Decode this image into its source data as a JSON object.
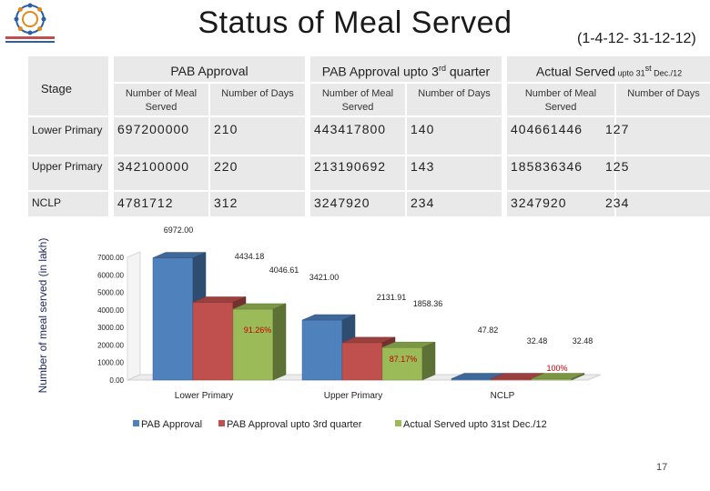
{
  "header": {
    "title": "Status of Meal Served",
    "period": "(1-4-12- 31-12-12)"
  },
  "table": {
    "stage_label": "Stage",
    "groups": [
      {
        "label": "PAB Approval"
      },
      {
        "label_main": "PAB Approval upto 3",
        "label_sup": "rd",
        "label_tail": " quarter"
      },
      {
        "label_main": "Actual Served",
        "label_small": " upto 31",
        "label_sup": "st",
        "label_small_tail": " Dec./12"
      }
    ],
    "sub_meal": "Number of Meal Served",
    "sub_days": "Number of Days",
    "rows": [
      {
        "stage": "Lower Primary",
        "cells": [
          "697200000",
          "210",
          "443417800",
          "140",
          "404661446",
          "127"
        ]
      },
      {
        "stage": "Upper Primary",
        "cells": [
          "342100000",
          "220",
          "213190692",
          "143",
          "185836346",
          "125"
        ]
      },
      {
        "stage": "NCLP",
        "cells": [
          "4781712",
          "312",
          "3247920",
          "234",
          "3247920",
          "234"
        ]
      }
    ]
  },
  "chart_data": {
    "type": "bar",
    "ylabel": "Number of meal served (in lakh)",
    "ylim": [
      0,
      7000
    ],
    "yticks": [
      "0.00",
      "1000.00",
      "2000.00",
      "3000.00",
      "4000.00",
      "5000.00",
      "6000.00",
      "7000.00"
    ],
    "categories": [
      "Lower Primary",
      "Upper Primary",
      "NCLP"
    ],
    "series": [
      {
        "name": "PAB Approval",
        "values": [
          6972.0,
          3421.0,
          47.82
        ],
        "labels": [
          "6972.00",
          "3421.00",
          "47.82"
        ],
        "color": "#4f81bd"
      },
      {
        "name": "PAB Approval upto 3rd quarter",
        "values": [
          4434.18,
          2131.91,
          32.48
        ],
        "labels": [
          "4434.18",
          "2131.91",
          "32.48"
        ],
        "color": "#c0504d"
      },
      {
        "name": "Actual Served upto 31st Dec./12",
        "values": [
          4046.61,
          1858.36,
          32.48
        ],
        "labels": [
          "4046.61",
          "1858.36",
          "32.48"
        ],
        "color": "#9bbb59"
      }
    ],
    "percent_labels": [
      "91.26%",
      "87.17%",
      "100%"
    ],
    "percent_color": "#c00000"
  },
  "footer": {
    "page_number": "17"
  }
}
